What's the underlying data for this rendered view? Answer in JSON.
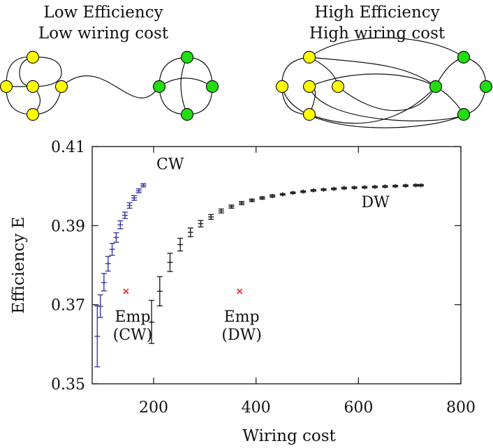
{
  "colors": {
    "node_yellow": "#ffff00",
    "node_green": "#22dd11",
    "cw_series": "#3b3c9c",
    "dw_series": "#222222",
    "empirical": "#e8271a"
  },
  "networks": [
    {
      "title_line1": "Low Efficiency",
      "title_line2": "Low wiring cost"
    },
    {
      "title_line1": "High Efficiency",
      "title_line2": "High wiring cost"
    }
  ],
  "chart_data": {
    "type": "scatter",
    "xlabel": "Wiring cost",
    "ylabel": "Efficiency E",
    "xlim": [
      80,
      800
    ],
    "ylim": [
      0.35,
      0.41
    ],
    "xticks": [
      200,
      400,
      600,
      800
    ],
    "yticks": [
      0.35,
      0.37,
      0.39,
      0.41
    ],
    "ytick_labels": [
      "0.35",
      "0.37",
      "0.39",
      "0.41"
    ],
    "legend": "none",
    "grid": false,
    "series": [
      {
        "name": "CW",
        "points": [
          {
            "x": 90,
            "y": 0.362,
            "ylo": 0.3543,
            "yhi": 0.3697
          },
          {
            "x": 96,
            "y": 0.3696,
            "ylo": 0.3668,
            "yhi": 0.3725
          },
          {
            "x": 103,
            "y": 0.3756,
            "ylo": 0.3735,
            "yhi": 0.3779
          },
          {
            "x": 111,
            "y": 0.3804,
            "ylo": 0.3785,
            "yhi": 0.3822
          },
          {
            "x": 119,
            "y": 0.384,
            "ylo": 0.3825,
            "yhi": 0.3855
          },
          {
            "x": 127,
            "y": 0.387,
            "ylo": 0.3858,
            "yhi": 0.3882
          },
          {
            "x": 135,
            "y": 0.3902,
            "ylo": 0.3892,
            "yhi": 0.3912
          },
          {
            "x": 144,
            "y": 0.3926,
            "ylo": 0.3918,
            "yhi": 0.3934
          },
          {
            "x": 153,
            "y": 0.3951,
            "ylo": 0.3944,
            "yhi": 0.3958
          },
          {
            "x": 162,
            "y": 0.397,
            "ylo": 0.3964,
            "yhi": 0.3976
          },
          {
            "x": 171,
            "y": 0.3988,
            "ylo": 0.3983,
            "yhi": 0.3993
          },
          {
            "x": 180,
            "y": 0.4002,
            "ylo": 0.3998,
            "yhi": 0.4006
          }
        ]
      },
      {
        "name": "DW",
        "points": [
          {
            "x": 196,
            "y": 0.3656,
            "ylo": 0.3602,
            "yhi": 0.3711
          },
          {
            "x": 212,
            "y": 0.3734,
            "ylo": 0.3697,
            "yhi": 0.3771
          },
          {
            "x": 232,
            "y": 0.3807,
            "ylo": 0.3784,
            "yhi": 0.383
          },
          {
            "x": 252,
            "y": 0.3852,
            "ylo": 0.3836,
            "yhi": 0.3868
          },
          {
            "x": 272,
            "y": 0.3883,
            "ylo": 0.3872,
            "yhi": 0.3894
          },
          {
            "x": 292,
            "y": 0.3905,
            "ylo": 0.3897,
            "yhi": 0.3913
          },
          {
            "x": 312,
            "y": 0.3922,
            "ylo": 0.3916,
            "yhi": 0.3928
          },
          {
            "x": 332,
            "y": 0.3937,
            "ylo": 0.3932,
            "yhi": 0.3942
          },
          {
            "x": 352,
            "y": 0.3948,
            "ylo": 0.3944,
            "yhi": 0.3952
          },
          {
            "x": 372,
            "y": 0.3957,
            "ylo": 0.3953,
            "yhi": 0.3961
          },
          {
            "x": 392,
            "y": 0.3964,
            "ylo": 0.3961,
            "yhi": 0.3967
          },
          {
            "x": 412,
            "y": 0.397,
            "ylo": 0.3967,
            "yhi": 0.3973
          },
          {
            "x": 432,
            "y": 0.3975,
            "ylo": 0.3972,
            "yhi": 0.3978
          },
          {
            "x": 452,
            "y": 0.3979,
            "ylo": 0.3977,
            "yhi": 0.3981
          },
          {
            "x": 472,
            "y": 0.3983,
            "ylo": 0.3981,
            "yhi": 0.3985
          },
          {
            "x": 492,
            "y": 0.3986,
            "ylo": 0.3984,
            "yhi": 0.3988
          },
          {
            "x": 512,
            "y": 0.3989,
            "ylo": 0.3987,
            "yhi": 0.3991
          },
          {
            "x": 532,
            "y": 0.3991,
            "ylo": 0.3989,
            "yhi": 0.3993
          },
          {
            "x": 552,
            "y": 0.3993,
            "ylo": 0.3991,
            "yhi": 0.3995
          },
          {
            "x": 572,
            "y": 0.3995,
            "ylo": 0.3993,
            "yhi": 0.3997
          },
          {
            "x": 592,
            "y": 0.3996,
            "ylo": 0.3994,
            "yhi": 0.3998
          },
          {
            "x": 612,
            "y": 0.3997,
            "ylo": 0.3995,
            "yhi": 0.3999
          },
          {
            "x": 632,
            "y": 0.3998,
            "ylo": 0.3996,
            "yhi": 0.4
          },
          {
            "x": 652,
            "y": 0.3999,
            "ylo": 0.3997,
            "yhi": 0.4001
          },
          {
            "x": 672,
            "y": 0.4,
            "ylo": 0.3998,
            "yhi": 0.4002
          },
          {
            "x": 692,
            "y": 0.4001,
            "ylo": 0.3999,
            "yhi": 0.4003
          },
          {
            "x": 712,
            "y": 0.4002,
            "ylo": 0.4,
            "yhi": 0.4004
          },
          {
            "x": 722,
            "y": 0.4002,
            "ylo": 0.4,
            "yhi": 0.4004
          }
        ]
      },
      {
        "name": "Empirical",
        "points": [
          {
            "x": 146,
            "y": 0.3734
          },
          {
            "x": 368,
            "y": 0.3734
          }
        ]
      }
    ],
    "annotations": [
      {
        "text": "CW",
        "x": 200,
        "y": 0.4053
      },
      {
        "text": "DW",
        "x": 622,
        "y": 0.3964
      },
      {
        "text_line1": "Emp",
        "text_line2": "(CW)",
        "x": 159,
        "y": 0.3664
      },
      {
        "text_line1": "Emp",
        "text_line2": "(DW)",
        "x": 372,
        "y": 0.3664
      }
    ]
  }
}
